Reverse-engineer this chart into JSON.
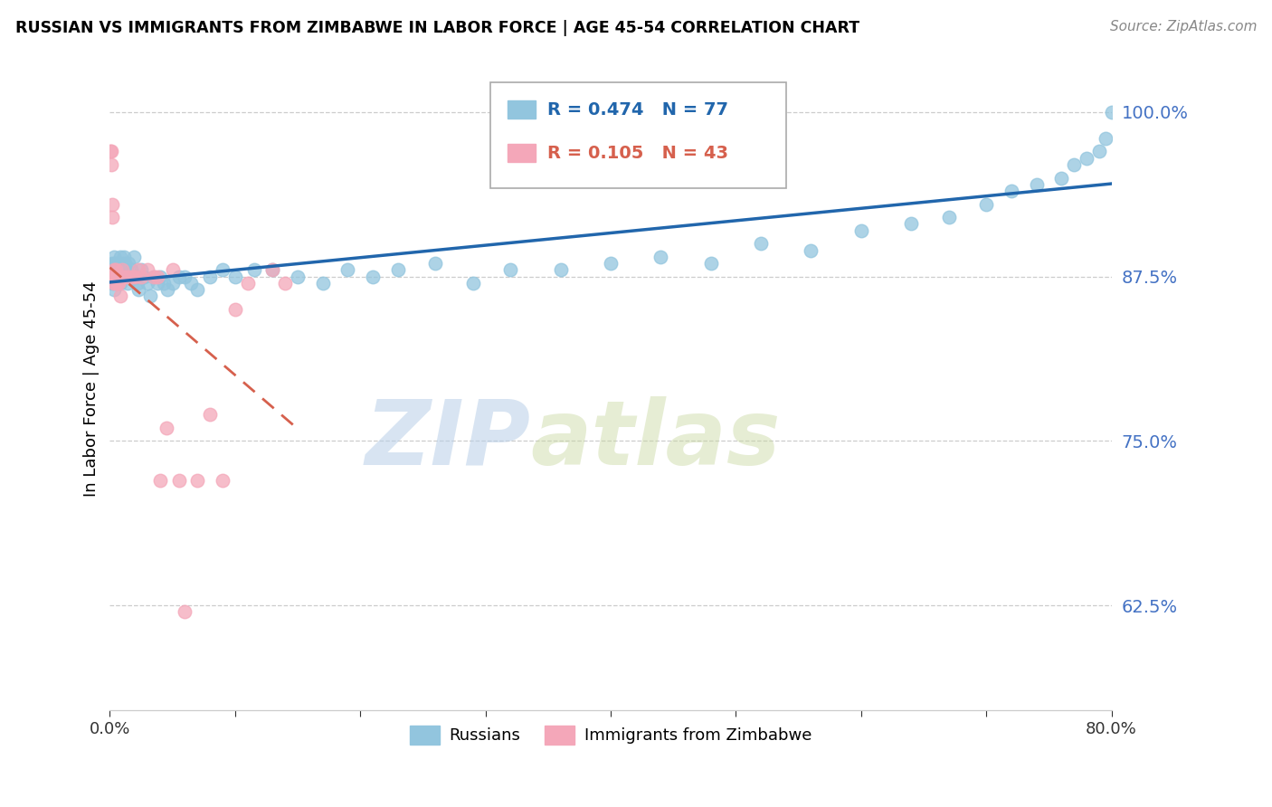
{
  "title": "RUSSIAN VS IMMIGRANTS FROM ZIMBABWE IN LABOR FORCE | AGE 45-54 CORRELATION CHART",
  "source": "Source: ZipAtlas.com",
  "ylabel": "In Labor Force | Age 45-54",
  "xlim": [
    0.0,
    0.8
  ],
  "ylim": [
    0.545,
    1.035
  ],
  "yticks": [
    0.625,
    0.75,
    0.875,
    1.0
  ],
  "ytick_labels": [
    "62.5%",
    "75.0%",
    "87.5%",
    "100.0%"
  ],
  "xticks": [
    0.0,
    0.1,
    0.2,
    0.3,
    0.4,
    0.5,
    0.6,
    0.7,
    0.8
  ],
  "xtick_labels": [
    "0.0%",
    "",
    "",
    "",
    "",
    "",
    "",
    "",
    "80.0%"
  ],
  "blue_R": 0.474,
  "blue_N": 77,
  "pink_R": 0.105,
  "pink_N": 43,
  "blue_color": "#92c5de",
  "pink_color": "#f4a7b9",
  "blue_line_color": "#2166ac",
  "pink_line_color": "#d6604d",
  "watermark_zip": "ZIP",
  "watermark_atlas": "atlas",
  "legend_label_blue": "Russians",
  "legend_label_pink": "Immigrants from Zimbabwe",
  "blue_x": [
    0.001,
    0.001,
    0.002,
    0.002,
    0.003,
    0.003,
    0.004,
    0.004,
    0.005,
    0.005,
    0.006,
    0.007,
    0.007,
    0.008,
    0.008,
    0.009,
    0.009,
    0.01,
    0.01,
    0.011,
    0.011,
    0.012,
    0.013,
    0.014,
    0.015,
    0.016,
    0.017,
    0.018,
    0.019,
    0.02,
    0.022,
    0.023,
    0.025,
    0.027,
    0.03,
    0.032,
    0.035,
    0.038,
    0.04,
    0.043,
    0.046,
    0.05,
    0.055,
    0.06,
    0.065,
    0.07,
    0.08,
    0.09,
    0.1,
    0.115,
    0.13,
    0.15,
    0.17,
    0.19,
    0.21,
    0.23,
    0.26,
    0.29,
    0.32,
    0.36,
    0.4,
    0.44,
    0.48,
    0.52,
    0.56,
    0.6,
    0.64,
    0.67,
    0.7,
    0.72,
    0.74,
    0.76,
    0.77,
    0.78,
    0.79,
    0.795,
    0.8
  ],
  "blue_y": [
    0.88,
    0.875,
    0.885,
    0.87,
    0.89,
    0.865,
    0.885,
    0.875,
    0.88,
    0.87,
    0.885,
    0.88,
    0.875,
    0.89,
    0.87,
    0.885,
    0.875,
    0.88,
    0.875,
    0.89,
    0.875,
    0.885,
    0.88,
    0.87,
    0.885,
    0.875,
    0.88,
    0.875,
    0.89,
    0.875,
    0.87,
    0.865,
    0.88,
    0.875,
    0.87,
    0.86,
    0.875,
    0.87,
    0.875,
    0.87,
    0.865,
    0.87,
    0.875,
    0.875,
    0.87,
    0.865,
    0.875,
    0.88,
    0.875,
    0.88,
    0.88,
    0.875,
    0.87,
    0.88,
    0.875,
    0.88,
    0.885,
    0.87,
    0.88,
    0.88,
    0.885,
    0.89,
    0.885,
    0.9,
    0.895,
    0.91,
    0.915,
    0.92,
    0.93,
    0.94,
    0.945,
    0.95,
    0.96,
    0.965,
    0.97,
    0.98,
    1.0
  ],
  "pink_x": [
    0.0003,
    0.0005,
    0.001,
    0.001,
    0.001,
    0.002,
    0.002,
    0.002,
    0.003,
    0.003,
    0.004,
    0.004,
    0.005,
    0.005,
    0.006,
    0.006,
    0.007,
    0.007,
    0.008,
    0.009,
    0.01,
    0.01,
    0.012,
    0.015,
    0.018,
    0.02,
    0.023,
    0.025,
    0.03,
    0.035,
    0.038,
    0.04,
    0.045,
    0.05,
    0.055,
    0.06,
    0.07,
    0.08,
    0.09,
    0.1,
    0.11,
    0.13,
    0.14
  ],
  "pink_y": [
    0.875,
    0.97,
    0.97,
    0.96,
    0.875,
    0.93,
    0.92,
    0.875,
    0.88,
    0.87,
    0.875,
    0.87,
    0.88,
    0.875,
    0.875,
    0.87,
    0.875,
    0.87,
    0.86,
    0.875,
    0.88,
    0.875,
    0.875,
    0.875,
    0.875,
    0.875,
    0.88,
    0.875,
    0.88,
    0.875,
    0.875,
    0.72,
    0.76,
    0.88,
    0.72,
    0.62,
    0.72,
    0.77,
    0.72,
    0.85,
    0.87,
    0.88,
    0.87
  ]
}
